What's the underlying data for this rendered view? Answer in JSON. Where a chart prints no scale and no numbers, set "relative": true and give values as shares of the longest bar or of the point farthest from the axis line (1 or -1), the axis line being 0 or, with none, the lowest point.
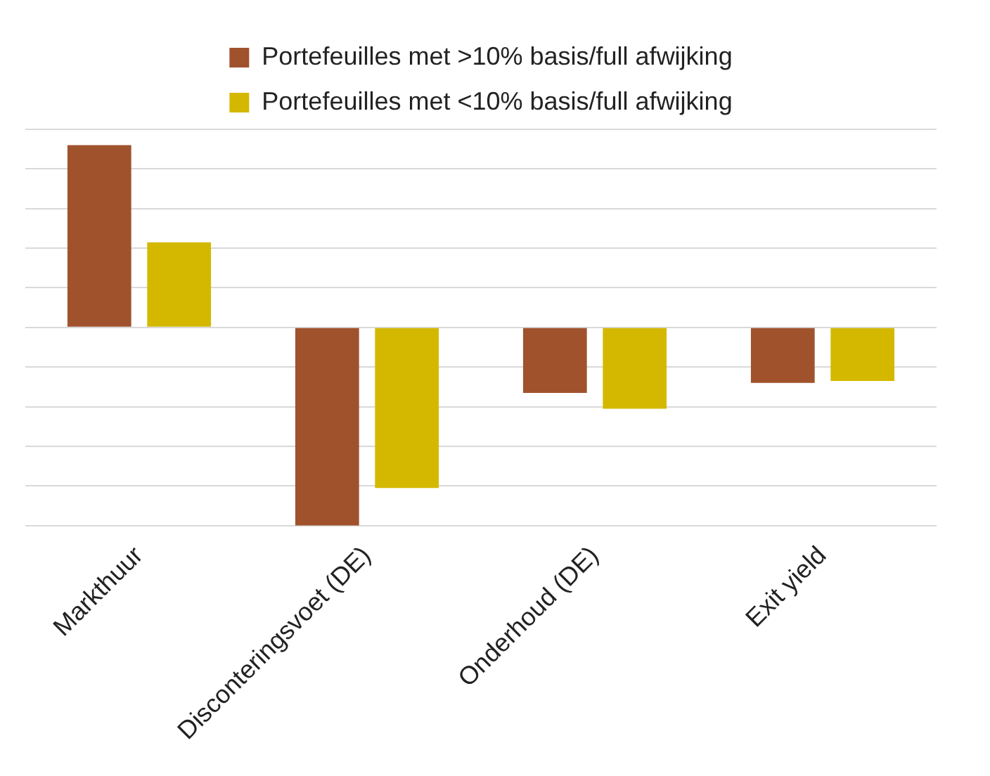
{
  "chart_data": {
    "type": "bar",
    "relative": true,
    "categories": [
      "Markthuur",
      "Disconteringsvoet (DE)",
      "Onderhoud (DE)",
      "Exit yield"
    ],
    "series": [
      {
        "name": "Portefeuilles met >10% basis/full afwijking",
        "color": "#a0522d",
        "values": [
          0.92,
          -1,
          -0.33,
          -0.28
        ]
      },
      {
        "name": "Portefeuilles met <10% basis/full afwijking",
        "color": "#d4b800",
        "values": [
          0.43,
          -0.81,
          -0.41,
          -0.27
        ]
      }
    ],
    "grid": "y",
    "legend": "top"
  }
}
